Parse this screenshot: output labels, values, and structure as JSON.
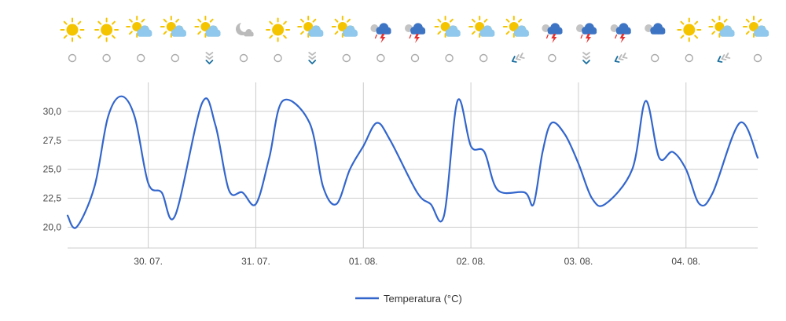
{
  "forecast_icons": [
    {
      "sky": "sun-icon",
      "wind": "calm-icon"
    },
    {
      "sky": "sun-icon",
      "wind": "calm-icon"
    },
    {
      "sky": "sun-cloud-icon",
      "wind": "calm-icon"
    },
    {
      "sky": "sun-cloud-icon",
      "wind": "calm-icon"
    },
    {
      "sky": "sun-cloud-icon",
      "wind": "wind-north-icon"
    },
    {
      "sky": "moon-cloud-icon",
      "wind": "calm-icon"
    },
    {
      "sky": "sun-icon",
      "wind": "calm-icon"
    },
    {
      "sky": "sun-cloud-icon",
      "wind": "wind-north-icon"
    },
    {
      "sky": "sun-cloud-icon",
      "wind": "calm-icon"
    },
    {
      "sky": "storm-cloud-icon",
      "wind": "calm-icon"
    },
    {
      "sky": "storm-cloud-icon",
      "wind": "calm-icon"
    },
    {
      "sky": "sun-cloud-icon",
      "wind": "calm-icon"
    },
    {
      "sky": "sun-cloud-icon",
      "wind": "calm-icon"
    },
    {
      "sky": "sun-cloud-icon",
      "wind": "wind-east-icon"
    },
    {
      "sky": "storm-cloud-icon",
      "wind": "calm-icon"
    },
    {
      "sky": "storm-cloud-icon",
      "wind": "wind-north-icon"
    },
    {
      "sky": "storm-cloud-icon",
      "wind": "wind-east-icon"
    },
    {
      "sky": "rain-cloud-icon",
      "wind": "calm-icon"
    },
    {
      "sky": "sun-icon",
      "wind": "calm-icon"
    },
    {
      "sky": "sun-cloud-icon",
      "wind": "wind-east-icon"
    },
    {
      "sky": "sun-cloud-icon",
      "wind": "calm-icon"
    }
  ],
  "colors": {
    "line": "#3366cc",
    "grid": "#cccccc",
    "sun": "#f5c400",
    "cloud": "#8fc8ec",
    "storm_cloud": "#3d74c4",
    "lightning": "#e83030",
    "wind_arrow": "#1a6fa0",
    "calm_circle": "#aaaaaa"
  },
  "chart_data": {
    "type": "line",
    "x": [
      "29.07. 06:00",
      "29.07. 08:00",
      "29.07. 12:00",
      "29.07. 15:00",
      "29.07. 18:00",
      "29.07. 21:00",
      "30.07. 00:00",
      "30.07. 03:00",
      "30.07. 06:00",
      "30.07. 12:00",
      "30.07. 15:00",
      "30.07. 18:00",
      "30.07. 21:00",
      "31.07. 00:00",
      "31.07. 03:00",
      "31.07. 06:00",
      "31.07. 12:00",
      "31.07. 15:00",
      "31.07. 18:00",
      "31.07. 21:00",
      "01.08. 00:00",
      "01.08. 03:00",
      "01.08. 06:00",
      "01.08. 12:00",
      "01.08. 15:00",
      "01.08. 18:00",
      "01.08. 21:00",
      "02.08. 00:00",
      "02.08. 03:00",
      "02.08. 06:00",
      "02.08. 12:00",
      "02.08. 14:00",
      "02.08. 16:00",
      "02.08. 18:00",
      "02.08. 21:00",
      "03.08. 00:00",
      "03.08. 03:00",
      "03.08. 06:00",
      "03.08. 12:00",
      "03.08. 15:00",
      "03.08. 18:00",
      "03.08. 21:00",
      "04.08. 00:00",
      "04.08. 03:00",
      "04.08. 06:00",
      "04.08. 12:00",
      "04.08. 16:00"
    ],
    "series": [
      {
        "name": "Temperatura (°C)",
        "values": [
          21.0,
          20.0,
          23.5,
          29.5,
          31.3,
          29.5,
          23.8,
          23.0,
          21.0,
          30.7,
          28.8,
          23.2,
          23.0,
          22.0,
          26.0,
          30.9,
          29.0,
          23.5,
          22.0,
          25.0,
          27.0,
          29.0,
          27.5,
          23.0,
          22.0,
          21.0,
          30.9,
          27.0,
          26.5,
          23.2,
          23.0,
          22.0,
          26.5,
          29.0,
          28.0,
          25.5,
          22.5,
          22.0,
          25.0,
          30.9,
          26.0,
          26.5,
          25.0,
          22.0,
          23.0,
          29.0,
          26.0
        ]
      }
    ],
    "x_tick_labels": [
      "30. 07.",
      "31. 07.",
      "01. 08.",
      "02. 08.",
      "03. 08.",
      "04. 08."
    ],
    "y_ticks": [
      20.0,
      22.5,
      25.0,
      27.5,
      30.0
    ],
    "y_tick_labels": [
      "20,0",
      "22,5",
      "25,0",
      "27,5",
      "30,0"
    ],
    "ylim": [
      18.2,
      32.5
    ],
    "grid": true,
    "legend": "bottom-center",
    "legend_label": "Temperatura (°C)"
  }
}
